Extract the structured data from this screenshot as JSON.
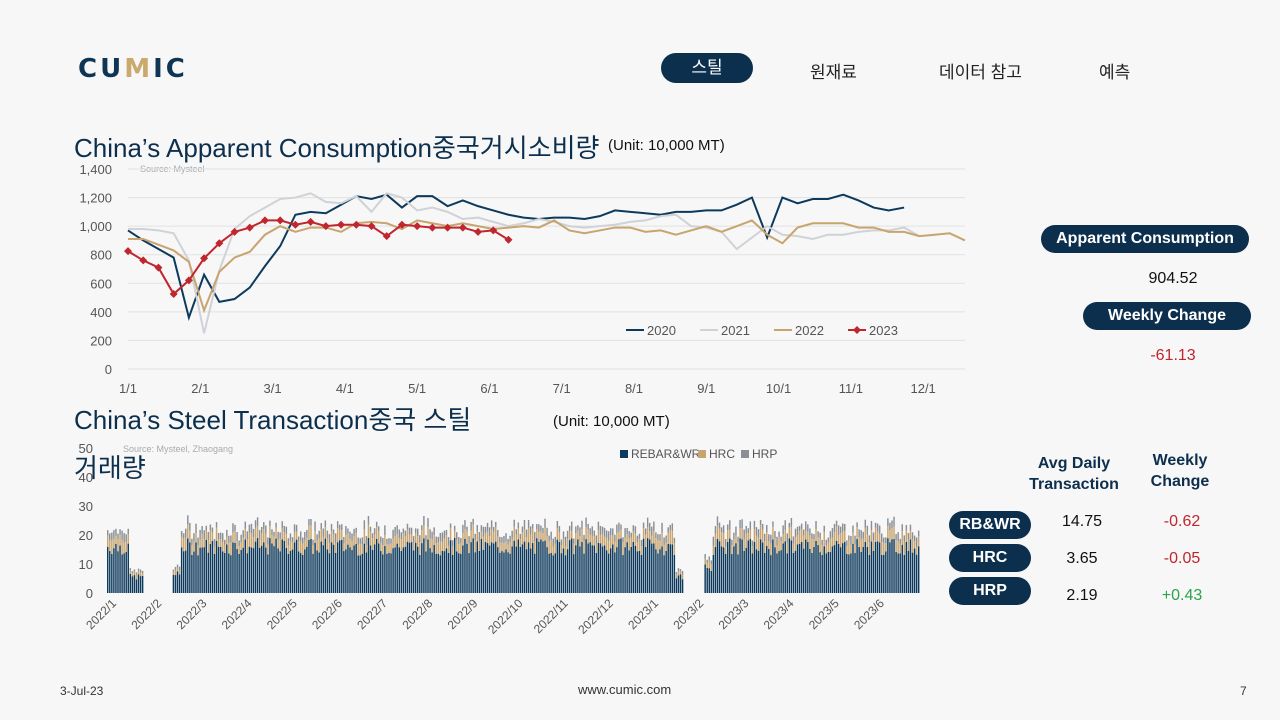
{
  "header": {
    "logo_text_1": "CU",
    "logo_text_2": "M",
    "logo_text_3": "IC",
    "nav": [
      {
        "label": "스틸",
        "active": true
      },
      {
        "label": "원재료",
        "active": false
      },
      {
        "label": "데이터 참고",
        "active": false
      },
      {
        "label": "예측",
        "active": false
      }
    ]
  },
  "chart1_title": "China’s Apparent Consumption중국거시소비량",
  "chart1_unit": "(Unit: 10,000 MT)",
  "chart2_title_line1": "China’s Steel Transaction중국 스틸",
  "chart2_title_line2": "거래량",
  "chart2_unit": "(Unit: 10,000 MT)",
  "chart_data": [
    {
      "type": "line",
      "source": "Source: Mysteel",
      "x_tick_labels": [
        "1/1",
        "2/1",
        "3/1",
        "4/1",
        "5/1",
        "6/1",
        "7/1",
        "8/1",
        "9/1",
        "10/1",
        "11/1",
        "12/1"
      ],
      "y_ticks": [
        0,
        200,
        400,
        600,
        800,
        "1,000",
        "1,200",
        "1,400"
      ],
      "ylim": [
        0,
        1400
      ],
      "legend_position": "bottom-right",
      "series": [
        {
          "name": "2020",
          "color": "#0d3a5c",
          "marker": "none",
          "values": [
            970,
            900,
            840,
            780,
            360,
            660,
            470,
            490,
            570,
            720,
            860,
            1080,
            1100,
            1090,
            1150,
            1210,
            1190,
            1220,
            1130,
            1210,
            1210,
            1140,
            1180,
            1140,
            1110,
            1080,
            1060,
            1050,
            1060,
            1060,
            1050,
            1070,
            1110,
            1100,
            1090,
            1080,
            1100,
            1100,
            1110,
            1110,
            1150,
            1200,
            920,
            1200,
            1160,
            1190,
            1190,
            1220,
            1180,
            1130,
            1110,
            1130
          ]
        },
        {
          "name": "2021",
          "color": "#cfd2d6",
          "marker": "none",
          "values": [
            980,
            980,
            970,
            950,
            760,
            250,
            690,
            980,
            1070,
            1130,
            1190,
            1200,
            1230,
            1170,
            1160,
            1210,
            1100,
            1230,
            1200,
            1110,
            1130,
            1100,
            1050,
            1060,
            1030,
            1000,
            1020,
            1050,
            1030,
            1000,
            990,
            1000,
            1010,
            1030,
            1040,
            1070,
            1080,
            1000,
            990,
            960,
            840,
            920,
            1000,
            940,
            930,
            910,
            940,
            940,
            960,
            970,
            970,
            990,
            930
          ]
        },
        {
          "name": "2022",
          "color": "#c8a46e",
          "marker": "none",
          "values": [
            910,
            910,
            870,
            830,
            750,
            410,
            680,
            780,
            820,
            940,
            1000,
            960,
            990,
            990,
            960,
            1020,
            1030,
            1020,
            980,
            1040,
            1020,
            1000,
            1020,
            1000,
            980,
            990,
            1000,
            990,
            1040,
            970,
            950,
            970,
            990,
            990,
            960,
            970,
            940,
            970,
            1000,
            960,
            1000,
            1040,
            940,
            880,
            990,
            1020,
            1020,
            1020,
            990,
            990,
            960,
            960,
            930,
            940,
            950,
            900
          ]
        },
        {
          "name": "2023",
          "color": "#c0262d",
          "marker": "diamond",
          "values": [
            825,
            760,
            710,
            525,
            620,
            775,
            880,
            960,
            990,
            1040,
            1040,
            1010,
            1030,
            1000,
            1010,
            1010,
            1000,
            930,
            1010,
            1000,
            990,
            990,
            990,
            960,
            970,
            904.52
          ]
        }
      ]
    },
    {
      "type": "bar",
      "stacked": true,
      "source": "Source: Mysteel, Zhaogang",
      "x_tick_labels": [
        "2022/1",
        "2022/2",
        "2022/3",
        "2022/4",
        "2022/5",
        "2022/6",
        "2022/7",
        "2022/8",
        "2022/9",
        "2022/10",
        "2022/11",
        "2022/12",
        "2023/1",
        "2023/2",
        "2023/3",
        "2023/4",
        "2023/5",
        "2023/6"
      ],
      "y_ticks": [
        0,
        10,
        20,
        30,
        40,
        50
      ],
      "ylim": [
        0,
        50
      ],
      "legend_position": "top",
      "series": [
        {
          "name": "REBAR&WR",
          "color": "#0d3a5c",
          "typical": 14.7
        },
        {
          "name": "HRC",
          "color": "#c8a46e",
          "typical": 3.6
        },
        {
          "name": "HRP",
          "color": "#8a8f95",
          "typical": 2.2
        }
      ],
      "note": "daily stacked bars, approximately 17 to 35 total, with a Lunar New Year gap near 2022/2 and 2023/1-2023/2"
    }
  ],
  "sidebar": {
    "apparent_consumption_label": "Apparent Consumption",
    "apparent_consumption_value": "904.52",
    "weekly_change_label": "Weekly Change",
    "weekly_change_value": "-61.13",
    "col1_header_line1": "Avg Daily",
    "col1_header_line2": "Transaction",
    "col2_header_line1": "Weekly",
    "col2_header_line2": "Change",
    "rows": [
      {
        "label": "RB&WR",
        "avg": "14.75",
        "change": "-0.62",
        "sign": "neg"
      },
      {
        "label": "HRC",
        "avg": "3.65",
        "change": "-0.05",
        "sign": "neg"
      },
      {
        "label": "HRP",
        "avg": "2.19",
        "change": "+0.43",
        "sign": "pos"
      }
    ]
  },
  "footer": {
    "date": "3-Jul-23",
    "url": "www.cumic.com",
    "page": "7"
  }
}
